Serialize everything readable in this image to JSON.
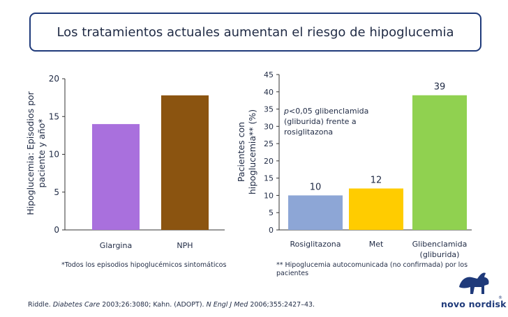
{
  "title": "Los tratamientos actuales aumentan el riesgo de hipoglucemia",
  "left_chart_footnote": "*Todos los episodios hipoglucémicos sintomáticos",
  "right_chart_footnote": "** Hipoglucemia autocomunicada (no confirmada) por los pacientes",
  "annotation": {
    "p_symbol": "p",
    "rest": "<0,05 glibenclamida (gliburida) frente a rosiglitazona"
  },
  "citation": {
    "part1": "Riddle. ",
    "journal1": "Diabetes Care",
    "part2": " 2003;26:3080; Kahn. (ADOPT). ",
    "journal2": "N Engl J Med",
    "part3": " 2006;355:2427–43."
  },
  "logo": {
    "text": "novo nordisk",
    "mark": "®"
  },
  "colors": {
    "purple": "#a970dd",
    "brown": "#8b5410",
    "blue": "#8da6d6",
    "yellow": "#ffcc00",
    "green": "#90d150",
    "text": "#1f2a44"
  },
  "chart_data": [
    {
      "type": "bar",
      "categories": [
        "Glargina",
        "NPH"
      ],
      "values": [
        14,
        17.8
      ],
      "colors": [
        "#a970dd",
        "#8b5410"
      ],
      "ylabel": "Hipoglucemia: Episodios por paciente y año*",
      "ylim": [
        0,
        20
      ],
      "yticks": [
        0,
        5,
        10,
        15,
        20
      ],
      "data_labels": false,
      "grid": false
    },
    {
      "type": "bar",
      "categories": [
        "Rosiglitazona",
        "Met",
        "Glibenclamida (gliburida)"
      ],
      "values": [
        10,
        12,
        39
      ],
      "colors": [
        "#8da6d6",
        "#ffcc00",
        "#90d150"
      ],
      "ylabel": "Pacientes con hipoglucemia** (%)",
      "ylim": [
        0,
        45
      ],
      "yticks": [
        0,
        5,
        10,
        15,
        20,
        25,
        30,
        35,
        40,
        45
      ],
      "data_labels": true,
      "grid": false
    }
  ]
}
